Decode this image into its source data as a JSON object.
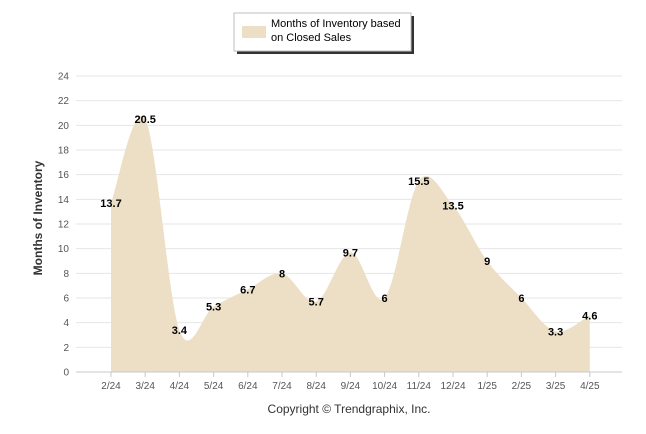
{
  "chart_data": {
    "type": "area",
    "categories": [
      "2/24",
      "3/24",
      "4/24",
      "5/24",
      "6/24",
      "7/24",
      "8/24",
      "9/24",
      "10/24",
      "11/24",
      "12/24",
      "1/25",
      "2/25",
      "3/25",
      "4/25"
    ],
    "series": [
      {
        "name": "Months of Inventory based on Closed Sales",
        "values": [
          13.7,
          20.5,
          3.4,
          5.3,
          6.7,
          8,
          5.7,
          9.7,
          6,
          15.5,
          13.5,
          9,
          6,
          3.3,
          4.6
        ],
        "labels": [
          "13.7",
          "20.5",
          "3.4",
          "5.3",
          "6.7",
          "8",
          "5.7",
          "9.7",
          "6",
          "15.5",
          "13.5",
          "9",
          "6",
          "3.3",
          "4.6"
        ],
        "color": "#ecdfc6"
      }
    ],
    "legend_lines": [
      "Months of Inventory based",
      "on Closed Sales"
    ],
    "ylabel": "Months of Inventory",
    "ylim": [
      0,
      24
    ],
    "yticks": [
      "0",
      "2",
      "4",
      "6",
      "8",
      "10",
      "12",
      "14",
      "16",
      "18",
      "20",
      "22",
      "24"
    ],
    "grid": true,
    "legend_position": "top-center",
    "footer": "Copyright © Trendgraphix, Inc."
  }
}
